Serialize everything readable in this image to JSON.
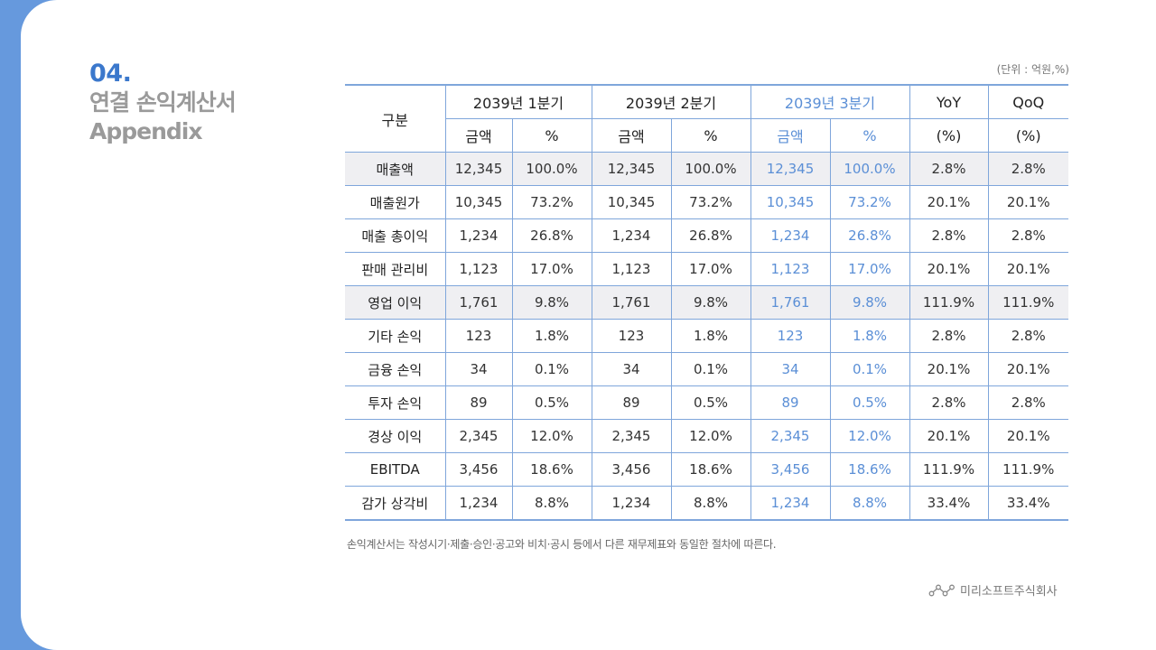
{
  "header": {
    "section_number": "04.",
    "title_kr": "연결 손익계산서",
    "title_en": "Appendix"
  },
  "unit_note": "(단위 : 억원,%)",
  "table": {
    "header_label": "구분",
    "periods": [
      {
        "label": "2039년 1분기",
        "sub": [
          "금액",
          "%"
        ]
      },
      {
        "label": "2039년 2분기",
        "sub": [
          "금액",
          "%"
        ]
      },
      {
        "label": "2039년 3분기",
        "sub": [
          "금액",
          "%"
        ],
        "highlight": true
      }
    ],
    "yoy": {
      "label": "YoY",
      "sub": "(%)"
    },
    "qoq": {
      "label": "QoQ",
      "sub": "(%)"
    },
    "rows": [
      {
        "label": "매출액",
        "shaded": true,
        "cells": [
          "12,345",
          "100.0%",
          "12,345",
          "100.0%",
          "12,345",
          "100.0%",
          "2.8%",
          "2.8%"
        ]
      },
      {
        "label": "매출원가",
        "cells": [
          "10,345",
          "73.2%",
          "10,345",
          "73.2%",
          "10,345",
          "73.2%",
          "20.1%",
          "20.1%"
        ]
      },
      {
        "label": "매출 총이익",
        "cells": [
          "1,234",
          "26.8%",
          "1,234",
          "26.8%",
          "1,234",
          "26.8%",
          "2.8%",
          "2.8%"
        ]
      },
      {
        "label": "판매 관리비",
        "cells": [
          "1,123",
          "17.0%",
          "1,123",
          "17.0%",
          "1,123",
          "17.0%",
          "20.1%",
          "20.1%"
        ]
      },
      {
        "label": "영업 이익",
        "shaded": true,
        "cells": [
          "1,761",
          "9.8%",
          "1,761",
          "9.8%",
          "1,761",
          "9.8%",
          "111.9%",
          "111.9%"
        ]
      },
      {
        "label": "기타 손익",
        "cells": [
          "123",
          "1.8%",
          "123",
          "1.8%",
          "123",
          "1.8%",
          "2.8%",
          "2.8%"
        ]
      },
      {
        "label": "금융 손익",
        "cells": [
          "34",
          "0.1%",
          "34",
          "0.1%",
          "34",
          "0.1%",
          "20.1%",
          "20.1%"
        ]
      },
      {
        "label": "투자 손익",
        "cells": [
          "89",
          "0.5%",
          "89",
          "0.5%",
          "89",
          "0.5%",
          "2.8%",
          "2.8%"
        ]
      },
      {
        "label": "경상 이익",
        "cells": [
          "2,345",
          "12.0%",
          "2,345",
          "12.0%",
          "2,345",
          "12.0%",
          "20.1%",
          "20.1%"
        ]
      },
      {
        "label": "EBITDA",
        "cells": [
          "3,456",
          "18.6%",
          "3,456",
          "18.6%",
          "3,456",
          "18.6%",
          "111.9%",
          "111.9%"
        ]
      },
      {
        "label": "감가 상각비",
        "cells": [
          "1,234",
          "8.8%",
          "1,234",
          "8.8%",
          "1,234",
          "8.8%",
          "33.4%",
          "33.4%"
        ]
      }
    ]
  },
  "footnote": "손익계산서는 작성시기·제출·승인·공고와 비치·공시 등에서 다른 재무제표와 동일한 절차에 따른다.",
  "company": {
    "name": "미리소프트주식회사",
    "icon": "chart-line-nodes-icon"
  },
  "colors": {
    "accent": "#3b78cc",
    "side_band": "#6699dd",
    "table_border": "#7fa6db",
    "q3_text": "#5b8fd6",
    "shaded_row": "#efeff2",
    "title_gray": "#9a9a9a"
  }
}
